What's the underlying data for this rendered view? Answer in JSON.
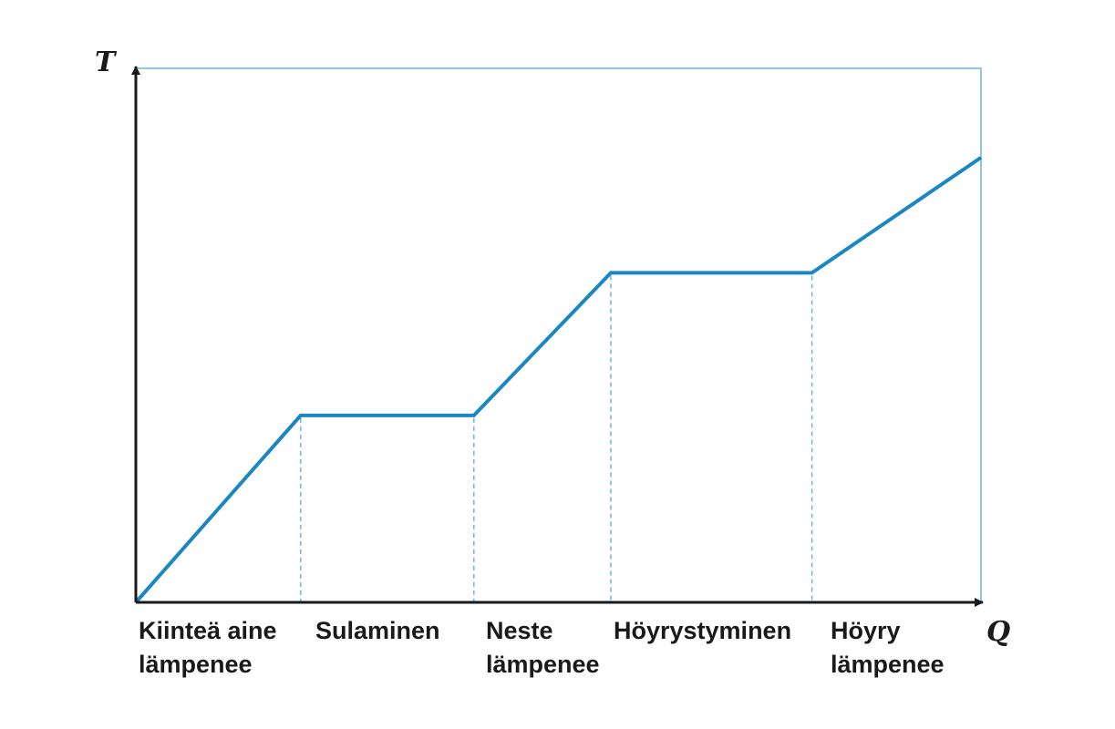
{
  "chart_data": {
    "type": "line",
    "xlabel": "Q",
    "ylabel": "T",
    "xlim": [
      0,
      100
    ],
    "ylim": [
      0,
      100
    ],
    "grid": false,
    "series": [
      {
        "x": [
          0,
          19.5,
          40,
          56.2,
          80,
          100
        ],
        "y": [
          0,
          35,
          35,
          61.7,
          61.7,
          83.3
        ]
      }
    ],
    "phase_boundaries": [
      19.5,
      40,
      56.2,
      80
    ],
    "segments": [
      {
        "lines": [
          "Kiinteä aine",
          "lämpenee"
        ]
      },
      {
        "lines": [
          "Sulaminen"
        ]
      },
      {
        "lines": [
          "Neste",
          "lämpenee"
        ]
      },
      {
        "lines": [
          "Höyrystyminen"
        ]
      },
      {
        "lines": [
          "Höyry",
          "lämpenee"
        ]
      }
    ],
    "colors": {
      "curve": "#1b87c2",
      "frame": "#64b7de",
      "dashed": "#64b7de",
      "axis": "#1a1a1a"
    }
  }
}
